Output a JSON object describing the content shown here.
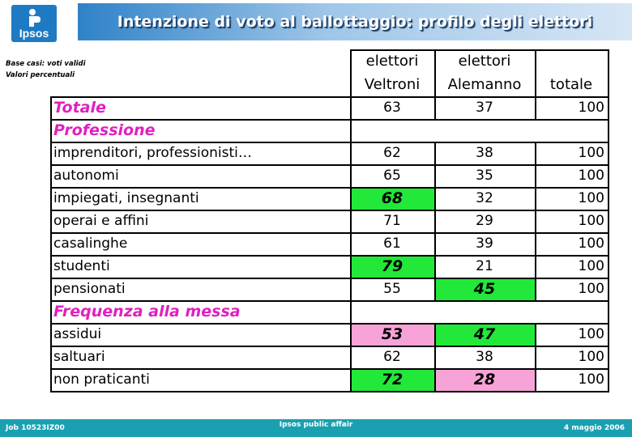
{
  "brand": {
    "logo_text": "Ipsos"
  },
  "title": "Intenzione di voto al ballottaggio: profilo degli elettori",
  "notes": [
    "Base casi: voti validi",
    "Valori percentuali"
  ],
  "columns": [
    {
      "line1": "elettori",
      "line2": "Veltroni"
    },
    {
      "line1": "elettori",
      "line2": "Alemanno"
    },
    {
      "line1": "",
      "line2": "totale"
    }
  ],
  "rows": [
    {
      "type": "section",
      "label": "Totale",
      "values": [
        "63",
        "37",
        "100"
      ],
      "highlight": [
        "",
        "",
        ""
      ]
    },
    {
      "type": "section",
      "label": "Professione",
      "values": [
        "",
        "",
        ""
      ],
      "highlight": [
        "",
        "",
        ""
      ]
    },
    {
      "type": "data",
      "label": "imprenditori, professionisti…",
      "values": [
        "62",
        "38",
        "100"
      ],
      "highlight": [
        "",
        "",
        ""
      ]
    },
    {
      "type": "data",
      "label": "autonomi",
      "values": [
        "65",
        "35",
        "100"
      ],
      "highlight": [
        "",
        "",
        ""
      ]
    },
    {
      "type": "data",
      "label": "impiegati, insegnanti",
      "values": [
        "68",
        "32",
        "100"
      ],
      "highlight": [
        "green",
        "",
        ""
      ]
    },
    {
      "type": "data",
      "label": "operai e affini",
      "values": [
        "71",
        "29",
        "100"
      ],
      "highlight": [
        "",
        "",
        ""
      ]
    },
    {
      "type": "data",
      "label": "casalinghe",
      "values": [
        "61",
        "39",
        "100"
      ],
      "highlight": [
        "",
        "",
        ""
      ]
    },
    {
      "type": "data",
      "label": "studenti",
      "values": [
        "79",
        "21",
        "100"
      ],
      "highlight": [
        "green",
        "",
        ""
      ]
    },
    {
      "type": "data",
      "label": "pensionati",
      "values": [
        "55",
        "45",
        "100"
      ],
      "highlight": [
        "",
        "green",
        ""
      ]
    },
    {
      "type": "section",
      "label": "Frequenza alla messa",
      "values": [
        "",
        "",
        ""
      ],
      "highlight": [
        "",
        "",
        ""
      ]
    },
    {
      "type": "data",
      "label": "assidui",
      "values": [
        "53",
        "47",
        "100"
      ],
      "highlight": [
        "pink",
        "green",
        ""
      ]
    },
    {
      "type": "data",
      "label": "saltuari",
      "values": [
        "62",
        "38",
        "100"
      ],
      "highlight": [
        "",
        "",
        ""
      ]
    },
    {
      "type": "data",
      "label": "non praticanti",
      "values": [
        "72",
        "28",
        "100"
      ],
      "highlight": [
        "green",
        "pink",
        ""
      ]
    }
  ],
  "colors": {
    "section": "#e020c0",
    "green": "#22e83a",
    "pink": "#f7a3d8",
    "footer": "#1aa0b0",
    "title_band": "#2f82c8"
  },
  "footer": {
    "job": "Job 10523IZ00",
    "center": "Ipsos public affair",
    "date": "4 maggio 2006"
  }
}
